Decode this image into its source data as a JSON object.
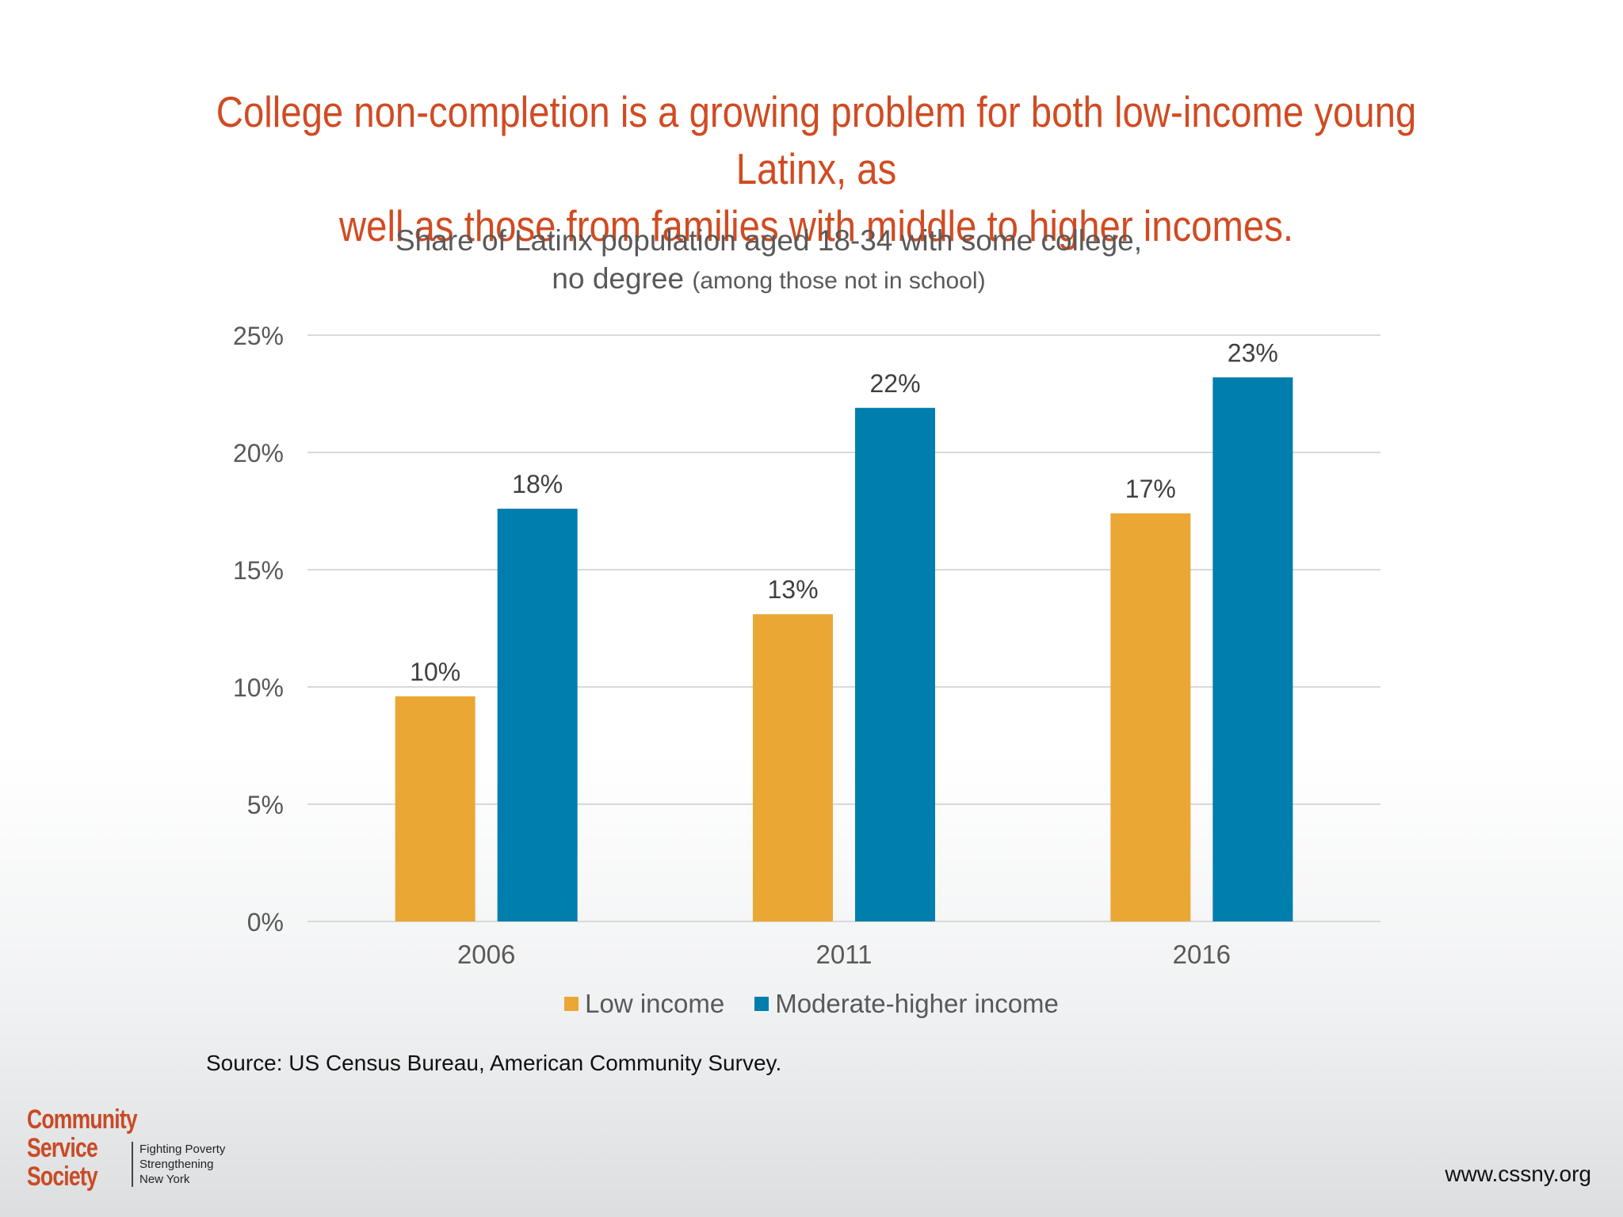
{
  "headline": {
    "line1": "College non-completion is a growing problem for both low-income young Latinx, as",
    "line2": "well as those from families with middle to higher incomes."
  },
  "chart_data": {
    "type": "bar",
    "title": "Share of Latinx population aged 18-34 with some college,",
    "title_line2": "no degree",
    "subtitle": "(among those not in school)",
    "categories": [
      "2006",
      "2011",
      "2016"
    ],
    "series": [
      {
        "name": "Low income",
        "values": [
          9.6,
          13.1,
          17.4
        ],
        "labels": [
          "10%",
          "13%",
          "17%"
        ],
        "color": "#eba734"
      },
      {
        "name": "Moderate-higher income",
        "values": [
          17.6,
          21.9,
          23.2
        ],
        "labels": [
          "18%",
          "22%",
          "23%"
        ],
        "color": "#007ead"
      }
    ],
    "ylim": [
      0,
      25
    ],
    "yticks": [
      "0%",
      "5%",
      "10%",
      "15%",
      "20%",
      "25%"
    ],
    "ytick_values": [
      0,
      5,
      10,
      15,
      20,
      25
    ],
    "grid": true,
    "legend_position": "bottom"
  },
  "source": "Source: US Census Bureau, American Community Survey.",
  "logo": {
    "words": [
      "Community",
      "Service",
      "Society"
    ],
    "tagline": [
      "Fighting Poverty",
      "Strengthening",
      "New York"
    ]
  },
  "website": "www.cssny.org",
  "colors": {
    "headline": "#d14b22",
    "low": "#eba734",
    "moderate": "#007ead",
    "grid": "#d9d9d9"
  }
}
